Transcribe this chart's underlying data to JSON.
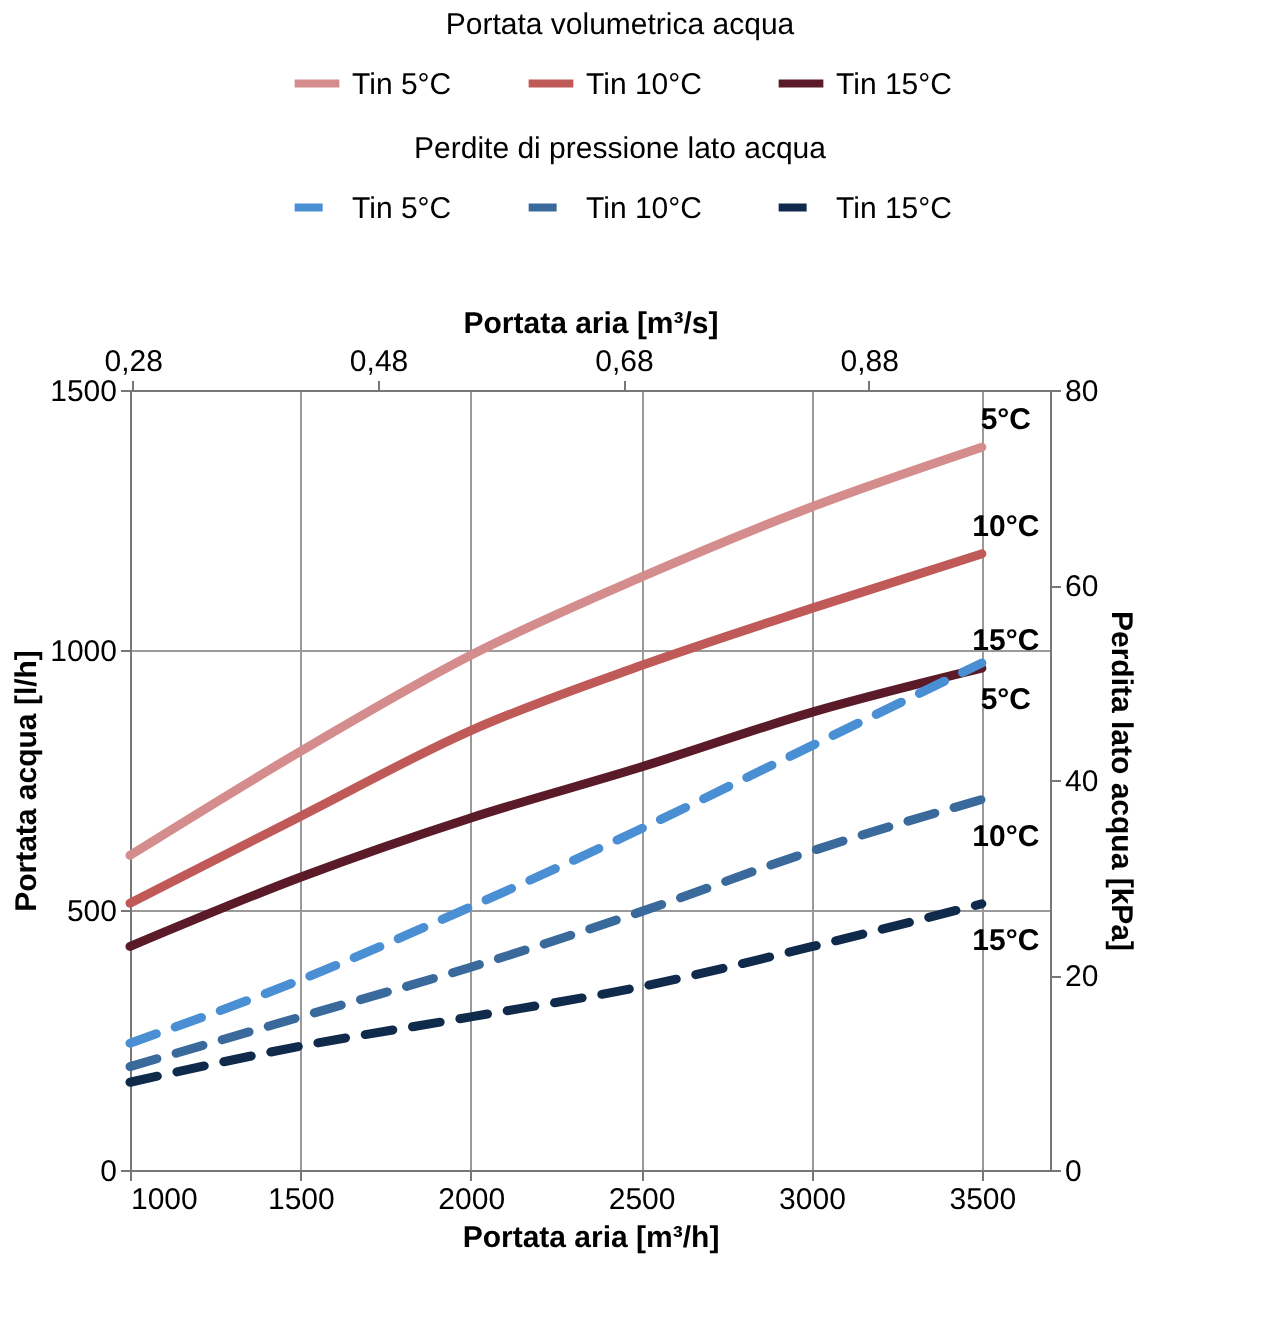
{
  "chart_data": {
    "type": "line",
    "xlabel": "Portata aria [m³/h]",
    "x2label": "Portata aria [m³/s]",
    "ylabel": "Portata acqua [l/h]",
    "y2label": "Perdita lato acqua [kPa]",
    "legend_title": [
      "Portata volumetrica acqua",
      "Perdite di pressione lato acqua"
    ],
    "x": [
      1000,
      1500,
      2000,
      2500,
      3000,
      3500
    ],
    "series": [
      {
        "name": "Tin 5°C",
        "color": "#d48c8c",
        "values": [
          605,
          805,
          990,
          1140,
          1275,
          1390
        ]
      },
      {
        "name": "Tin 10°C",
        "color": "#c05a58",
        "values": [
          513,
          680,
          845,
          970,
          1080,
          1185
        ]
      },
      {
        "name": "Tin 15°C",
        "color": "#5a1a28",
        "values": [
          430,
          563,
          677,
          775,
          880,
          965
        ]
      },
      {
        "name": "Tin 5°C",
        "color": "#4a8fd4",
        "axis": "y2",
        "line_style": "dashed",
        "values": [
          13,
          19.5,
          27,
          35,
          43.5,
          52
        ]
      },
      {
        "name": "Tin 10°C",
        "color": "#3a6a9c",
        "axis": "y2",
        "line_style": "dashed",
        "values": [
          10.6,
          15.7,
          20.8,
          26.5,
          32.7,
          38
        ]
      },
      {
        "name": "Tin 15°C",
        "color": "#0f2a4a",
        "axis": "y2",
        "line_style": "dashed",
        "values": [
          9,
          12.7,
          15.7,
          18.8,
          22.9,
          27.3
        ]
      }
    ],
    "xlim": [
      1000,
      3700
    ],
    "xticks": [
      1000,
      1500,
      2000,
      2500,
      3000,
      3500
    ],
    "x2lim": [
      0.27778,
      1.02778
    ],
    "x2ticks": [
      {
        "value": 0.28,
        "label": "0,28"
      },
      {
        "value": 0.48,
        "label": "0,48"
      },
      {
        "value": 0.68,
        "label": "0,68"
      },
      {
        "value": 0.88,
        "label": "0,88"
      }
    ],
    "ylim": [
      0,
      1500
    ],
    "yticks": [
      0,
      500,
      1000,
      1500
    ],
    "y2lim": [
      0,
      80
    ],
    "y2ticks": [
      0,
      20,
      40,
      60,
      80
    ],
    "annotations": [
      "5°C",
      "10°C",
      "15°C",
      "5°C",
      "10°C",
      "15°C"
    ],
    "grid": true,
    "legend": "top",
    "marker": "none",
    "line_style": "solid"
  }
}
